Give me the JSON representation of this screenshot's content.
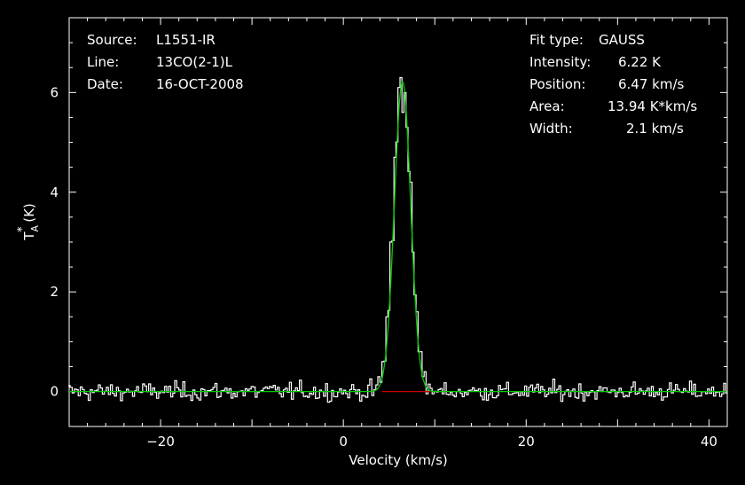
{
  "chart_data": {
    "type": "line",
    "xlabel": "Velocity (km/s)",
    "ylabel": "T_A^* (K)",
    "xlim": [
      -30,
      42
    ],
    "ylim": [
      -0.7,
      7.5
    ],
    "xticks": [
      -20,
      0,
      20,
      40
    ],
    "yticks": [
      0,
      2,
      4,
      6
    ],
    "grid": false,
    "legend": "none",
    "annotations_left": [
      {
        "key": "Source:",
        "value": "L1551-IR"
      },
      {
        "key": "Line:",
        "value": "13CO(2-1)L"
      },
      {
        "key": "Date:",
        "value": "16-OCT-2008"
      }
    ],
    "annotations_right": [
      {
        "key": "Fit type:",
        "value": "GAUSS"
      },
      {
        "key": "Intensity:",
        "value": "6.22 K"
      },
      {
        "key": "Position:",
        "value": "6.47 km/s"
      },
      {
        "key": "Area:",
        "value": "13.94 K*km/s"
      },
      {
        "key": "Width:",
        "value": "2.1 km/s"
      }
    ],
    "fit": {
      "amplitude": 6.22,
      "center": 6.47,
      "fwhm": 2.1,
      "baseline": 0
    },
    "baseline_segment": [
      4.2,
      9.5
    ],
    "spectrum_peak_points": [
      {
        "x": 3.8,
        "y": 0.3
      },
      {
        "x": 4.3,
        "y": 0.6
      },
      {
        "x": 4.8,
        "y": 1.5
      },
      {
        "x": 5.2,
        "y": 3.0
      },
      {
        "x": 5.6,
        "y": 4.7
      },
      {
        "x": 6.0,
        "y": 6.1
      },
      {
        "x": 6.2,
        "y": 7.1
      },
      {
        "x": 6.35,
        "y": 6.3
      },
      {
        "x": 6.6,
        "y": 5.6
      },
      {
        "x": 6.8,
        "y": 6.0
      },
      {
        "x": 7.0,
        "y": 5.3
      },
      {
        "x": 7.3,
        "y": 4.2
      },
      {
        "x": 7.7,
        "y": 2.8
      },
      {
        "x": 8.1,
        "y": 1.6
      },
      {
        "x": 8.5,
        "y": 0.8
      },
      {
        "x": 8.9,
        "y": 0.4
      },
      {
        "x": 9.3,
        "y": 0.15
      }
    ],
    "noise_rms": 0.1,
    "colors": {
      "spectrum": "#ffffff",
      "fit": "#00cc00",
      "baseline": "#cc0000",
      "axes": "#ffffff"
    }
  }
}
